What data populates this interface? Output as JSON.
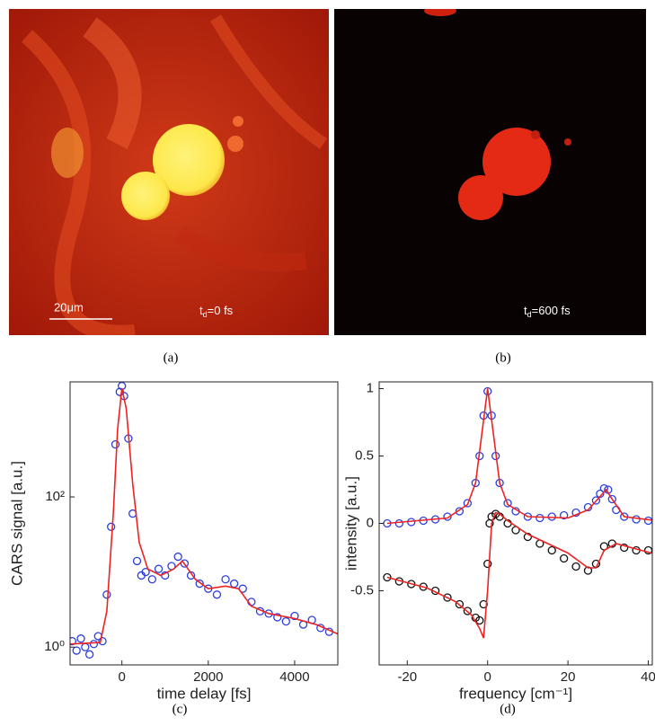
{
  "panels": [
    {
      "caption": "(a)",
      "scale_bar": "20μm",
      "time_label": {
        "symbol": "t",
        "sub": "d",
        "text": "=0 fs"
      }
    },
    {
      "caption": "(b)",
      "time_label": {
        "symbol": "t",
        "sub": "d",
        "text": "=600 fs"
      }
    }
  ],
  "chart_data": [
    {
      "type": "scatter",
      "caption": "(c)",
      "xlabel": "time delay [fs]",
      "ylabel": "CARS signal [a.u.]",
      "ylog": true,
      "xlim": [
        -1200,
        5000
      ],
      "ylim": [
        0.58,
        3400
      ],
      "xticks": [
        0,
        2000,
        4000
      ],
      "yticks": [
        {
          "value": 1,
          "label": "10⁰"
        },
        {
          "value": 100,
          "label": "10²"
        }
      ],
      "series": [
        {
          "mode": "markers",
          "color": "#2b3fe0",
          "x": [
            -1150,
            -1050,
            -950,
            -850,
            -750,
            -650,
            -550,
            -450,
            -350,
            -250,
            -150,
            -50,
            0,
            50,
            150,
            250,
            350,
            450,
            550,
            700,
            850,
            1000,
            1150,
            1300,
            1450,
            1600,
            1800,
            2000,
            2200,
            2400,
            2600,
            2800,
            3000,
            3200,
            3400,
            3600,
            3800,
            4000,
            4200,
            4400,
            4600,
            4800
          ],
          "values": [
            1.2,
            0.9,
            1.3,
            1.0,
            0.8,
            1.1,
            1.4,
            1.2,
            5,
            40,
            500,
            2500,
            3000,
            2200,
            600,
            60,
            14,
            9,
            10,
            8,
            11,
            9,
            12,
            16,
            13,
            9,
            7,
            6,
            5,
            8,
            7,
            6,
            4,
            3,
            2.8,
            2.5,
            2.2,
            2.6,
            2.0,
            2.3,
            1.8,
            1.6
          ]
        },
        {
          "mode": "line",
          "color": "#ee2222",
          "x": [
            -1200,
            -500,
            -350,
            -200,
            -100,
            0,
            100,
            250,
            400,
            600,
            900,
            1200,
            1400,
            1700,
            2000,
            2400,
            2700,
            3000,
            3400,
            4000,
            4500,
            5000
          ],
          "values": [
            1.1,
            1.15,
            3,
            60,
            800,
            2800,
            1500,
            150,
            25,
            11,
            9,
            11,
            14,
            8,
            6,
            6.5,
            6,
            3.5,
            2.8,
            2.4,
            2,
            1.5
          ]
        }
      ]
    },
    {
      "type": "scatter",
      "caption": "(d)",
      "xlabel": "frequency [cm⁻¹]",
      "ylabel": "intensity [a.u.]",
      "ylog": false,
      "xlim": [
        -27,
        41
      ],
      "ylim": [
        -1.05,
        1.05
      ],
      "xticks": [
        -20,
        0,
        20,
        40
      ],
      "yticks": [
        -0.5,
        0,
        0.5,
        1
      ],
      "series": [
        {
          "mode": "markers",
          "color": "#2b3fe0",
          "x": [
            -25,
            -22,
            -19,
            -16,
            -13,
            -10,
            -7,
            -5,
            -3,
            -2,
            -1,
            0,
            1,
            2,
            3,
            5,
            7,
            10,
            13,
            16,
            19,
            22,
            25,
            27,
            28,
            29,
            30,
            31,
            32,
            34,
            37,
            40,
            42
          ],
          "values": [
            0,
            0,
            0.01,
            0.02,
            0.03,
            0.05,
            0.09,
            0.15,
            0.3,
            0.5,
            0.8,
            0.98,
            0.8,
            0.5,
            0.3,
            0.15,
            0.09,
            0.05,
            0.04,
            0.05,
            0.06,
            0.08,
            0.12,
            0.17,
            0.22,
            0.26,
            0.25,
            0.18,
            0.1,
            0.05,
            0.03,
            0.02,
            0.02
          ]
        },
        {
          "mode": "line",
          "color": "#ee2222",
          "x": [
            -25,
            -10,
            -5,
            -3,
            -1.5,
            0,
            1.5,
            3,
            5,
            10,
            20,
            25,
            28,
            29.5,
            31,
            34,
            42
          ],
          "values": [
            0,
            0.04,
            0.14,
            0.3,
            0.65,
            1.0,
            0.65,
            0.3,
            0.14,
            0.05,
            0.04,
            0.1,
            0.2,
            0.25,
            0.18,
            0.05,
            0.02
          ]
        },
        {
          "mode": "markers",
          "color": "#111111",
          "x": [
            -25,
            -22,
            -19,
            -16,
            -13,
            -10,
            -7,
            -5,
            -3,
            -2,
            -1,
            0,
            0.5,
            1,
            2,
            3,
            5,
            7,
            10,
            13,
            16,
            19,
            22,
            25,
            27,
            29,
            31,
            34,
            37,
            40,
            42
          ],
          "values": [
            -0.4,
            -0.43,
            -0.45,
            -0.47,
            -0.5,
            -0.55,
            -0.6,
            -0.65,
            -0.7,
            -0.72,
            -0.6,
            -0.3,
            0,
            0.05,
            0.07,
            0.05,
            0,
            -0.05,
            -0.1,
            -0.15,
            -0.2,
            -0.26,
            -0.32,
            -0.35,
            -0.3,
            -0.17,
            -0.15,
            -0.18,
            -0.2,
            -0.2,
            -0.23
          ]
        },
        {
          "mode": "line",
          "color": "#ee2222",
          "x": [
            -25,
            -15,
            -8,
            -4,
            -2,
            -1,
            0,
            1,
            2,
            3,
            5,
            10,
            20,
            25,
            27,
            29,
            32,
            37,
            42
          ],
          "values": [
            -0.4,
            -0.48,
            -0.58,
            -0.68,
            -0.78,
            -0.85,
            -0.5,
            0,
            0.08,
            0.07,
            0.02,
            -0.08,
            -0.22,
            -0.33,
            -0.33,
            -0.2,
            -0.15,
            -0.19,
            -0.23
          ]
        }
      ]
    }
  ]
}
